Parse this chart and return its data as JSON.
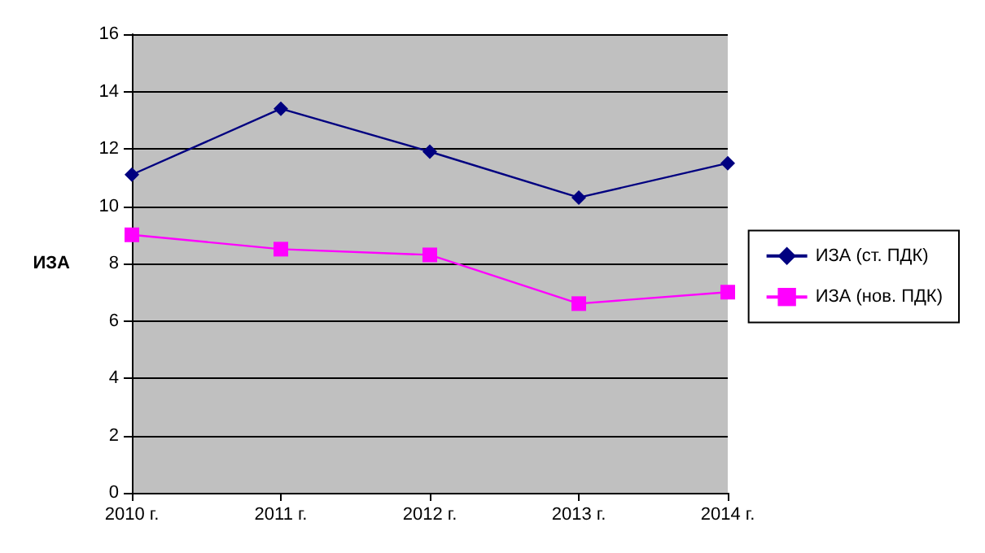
{
  "chart_data": {
    "type": "line",
    "ylabel": "ИЗА",
    "categories": [
      "2010 г.",
      "2011 г.",
      "2012 г.",
      "2013 г.",
      "2014 г."
    ],
    "series": [
      {
        "name": "ИЗА (ст. ПДК)",
        "color": "#000080",
        "marker": "diamond",
        "values": [
          11.1,
          13.4,
          11.9,
          10.3,
          11.5
        ]
      },
      {
        "name": "ИЗА (нов. ПДК)",
        "color": "#ff00ff",
        "marker": "square",
        "values": [
          9.0,
          8.5,
          8.3,
          6.6,
          7.0
        ]
      }
    ],
    "ylim": [
      0,
      16
    ],
    "yticks": [
      0,
      2,
      4,
      6,
      8,
      10,
      12,
      14,
      16
    ],
    "grid": "y",
    "legend": "right"
  }
}
